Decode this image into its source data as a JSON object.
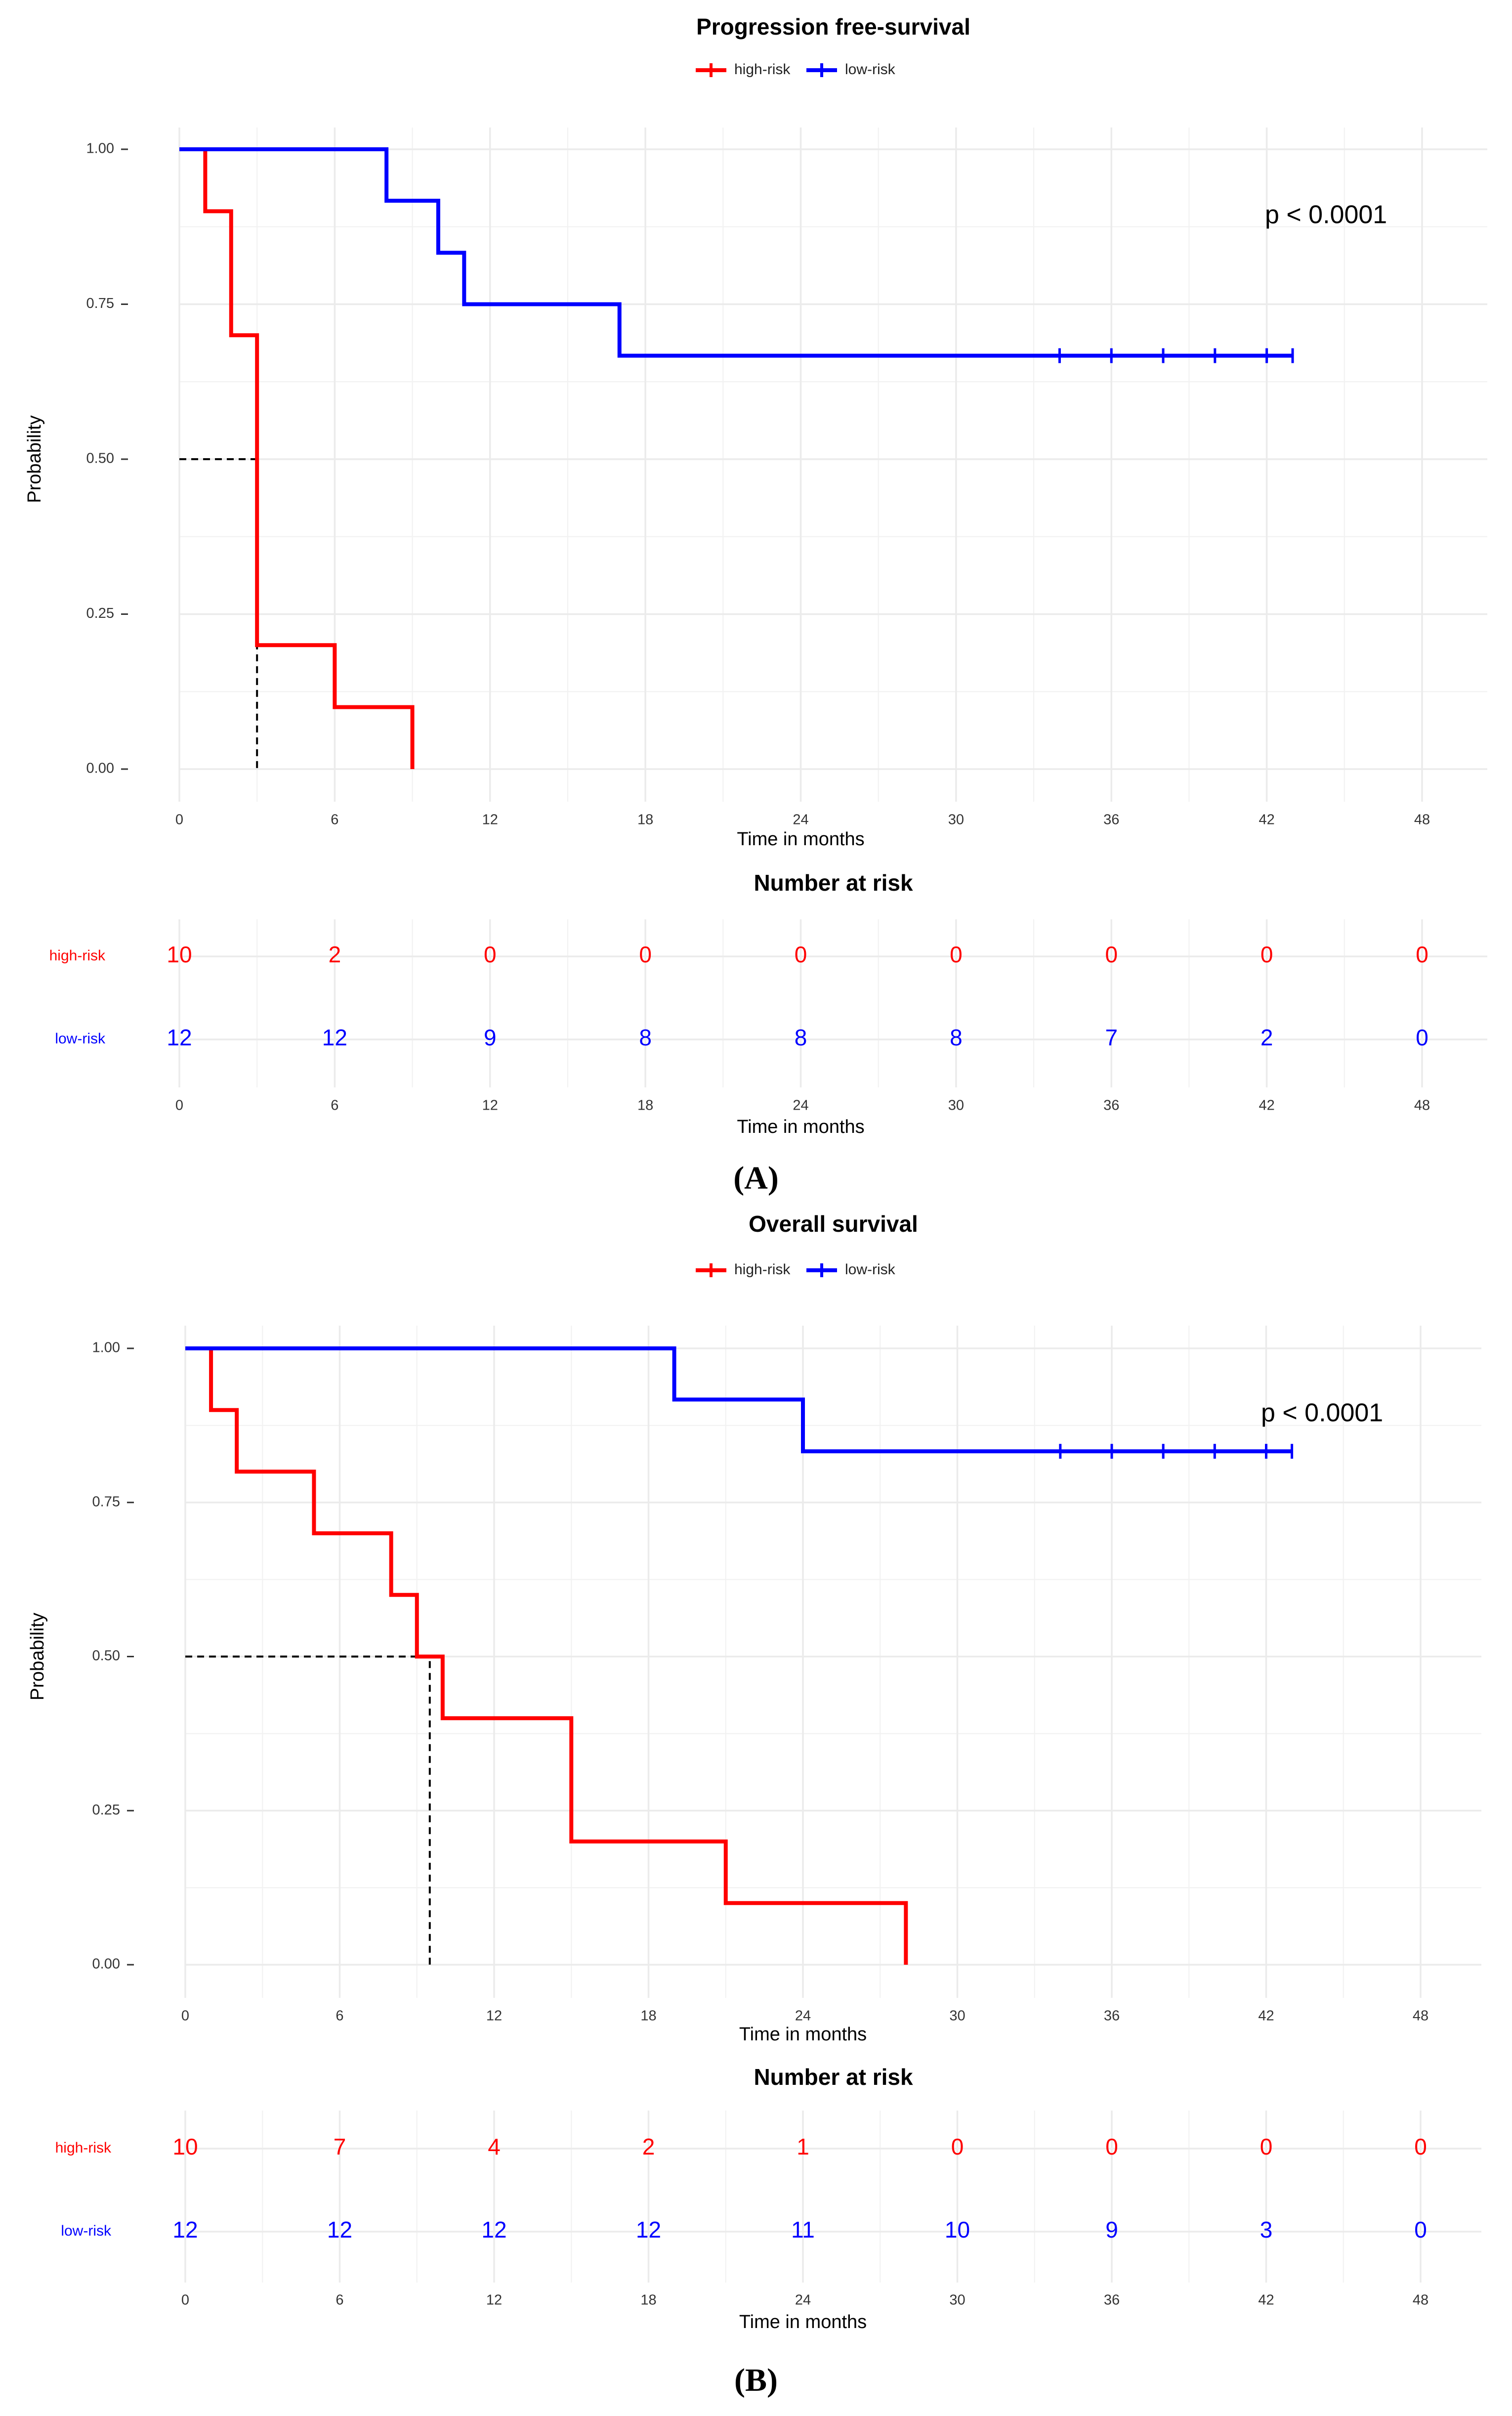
{
  "colors": {
    "high": "#ff0000",
    "low": "#0000ff",
    "grid": "#ebebeb",
    "text": "#000000",
    "tick": "#333333"
  },
  "panels": [
    {
      "label": "(A)",
      "axis_title_y": "Probability",
      "axis_title_x": "Time in months",
      "risk_title": "Number at risk",
      "risk_axis_title_x": "Time in months",
      "y_tick_labels": [
        "0.00",
        "0.25",
        "0.50",
        "0.75",
        "1.00"
      ],
      "x_tick_labels": [
        "0",
        "6",
        "12",
        "18",
        "24",
        "30",
        "36",
        "42",
        "48"
      ],
      "risk_rows": [
        "high-risk",
        "low-risk"
      ]
    },
    {
      "label": "(B)",
      "axis_title_y": "Probability",
      "axis_title_x": "Time in months",
      "risk_title": "Number at risk",
      "risk_axis_title_x": "Time in months",
      "y_tick_labels": [
        "0.00",
        "0.25",
        "0.50",
        "0.75",
        "1.00"
      ],
      "x_tick_labels": [
        "0",
        "6",
        "12",
        "18",
        "24",
        "30",
        "36",
        "42",
        "48"
      ],
      "risk_rows": [
        "high-risk",
        "low-risk"
      ]
    }
  ],
  "chart_data": [
    {
      "type": "line",
      "subtype": "kaplan-meier",
      "title": "Progression free-survival",
      "xlabel": "Time in months",
      "ylabel": "Probability",
      "xlim": [
        0,
        48
      ],
      "ylim": [
        0,
        1
      ],
      "x_ticks": [
        0,
        6,
        12,
        18,
        24,
        30,
        36,
        42,
        48
      ],
      "y_ticks": [
        0,
        0.25,
        0.5,
        0.75,
        1.0
      ],
      "legend": [
        "high-risk",
        "low-risk"
      ],
      "legend_position": "top",
      "annotation": "p < 0.0001",
      "median_high_risk": 3,
      "series": [
        {
          "name": "high-risk",
          "color": "#ff0000",
          "steps": [
            [
              0,
              1.0
            ],
            [
              1,
              0.9
            ],
            [
              2,
              0.7
            ],
            [
              3,
              0.2
            ],
            [
              6,
              0.1
            ],
            [
              9,
              0.0
            ]
          ],
          "end": 9,
          "censor": []
        },
        {
          "name": "low-risk",
          "color": "#0000ff",
          "steps": [
            [
              0,
              1.0
            ],
            [
              8,
              0.917
            ],
            [
              10,
              0.833
            ],
            [
              11,
              0.75
            ],
            [
              17,
              0.667
            ]
          ],
          "end": 43,
          "censor": [
            34,
            36,
            38,
            40,
            42,
            43
          ]
        }
      ],
      "risk_table": {
        "title": "Number at risk",
        "times": [
          0,
          6,
          12,
          18,
          24,
          30,
          36,
          42,
          48
        ],
        "rows": [
          {
            "name": "high-risk",
            "values": [
              "10",
              "2",
              "0",
              "0",
              "0",
              "0",
              "0",
              "0",
              "0"
            ]
          },
          {
            "name": "low-risk",
            "values": [
              "12",
              "12",
              "9",
              "8",
              "8",
              "8",
              "7",
              "2",
              "0"
            ]
          }
        ]
      }
    },
    {
      "type": "line",
      "subtype": "kaplan-meier",
      "title": "Overall survival",
      "xlabel": "Time in months",
      "ylabel": "Probability",
      "xlim": [
        0,
        48
      ],
      "ylim": [
        0,
        1
      ],
      "x_ticks": [
        0,
        6,
        12,
        18,
        24,
        30,
        36,
        42,
        48
      ],
      "y_ticks": [
        0,
        0.25,
        0.5,
        0.75,
        1.0
      ],
      "legend": [
        "high-risk",
        "low-risk"
      ],
      "legend_position": "top",
      "annotation": "p < 0.0001",
      "median_high_risk": 9.5,
      "series": [
        {
          "name": "high-risk",
          "color": "#ff0000",
          "steps": [
            [
              0,
              1.0
            ],
            [
              1,
              0.9
            ],
            [
              2,
              0.8
            ],
            [
              5,
              0.7
            ],
            [
              8,
              0.6
            ],
            [
              9,
              0.5
            ],
            [
              10,
              0.4
            ],
            [
              15,
              0.2
            ],
            [
              21,
              0.1
            ],
            [
              28,
              0.0
            ]
          ],
          "end": 28,
          "censor": []
        },
        {
          "name": "low-risk",
          "color": "#0000ff",
          "steps": [
            [
              0,
              1.0
            ],
            [
              19,
              0.917
            ],
            [
              24,
              0.833
            ]
          ],
          "end": 43,
          "censor": [
            34,
            36,
            38,
            40,
            42,
            43
          ]
        }
      ],
      "risk_table": {
        "title": "Number at risk",
        "times": [
          0,
          6,
          12,
          18,
          24,
          30,
          36,
          42,
          48
        ],
        "rows": [
          {
            "name": "high-risk",
            "values": [
              "10",
              "7",
              "4",
              "2",
              "1",
              "0",
              "0",
              "0",
              "0"
            ]
          },
          {
            "name": "low-risk",
            "values": [
              "12",
              "12",
              "12",
              "12",
              "11",
              "10",
              "9",
              "3",
              "0"
            ]
          }
        ]
      }
    }
  ]
}
